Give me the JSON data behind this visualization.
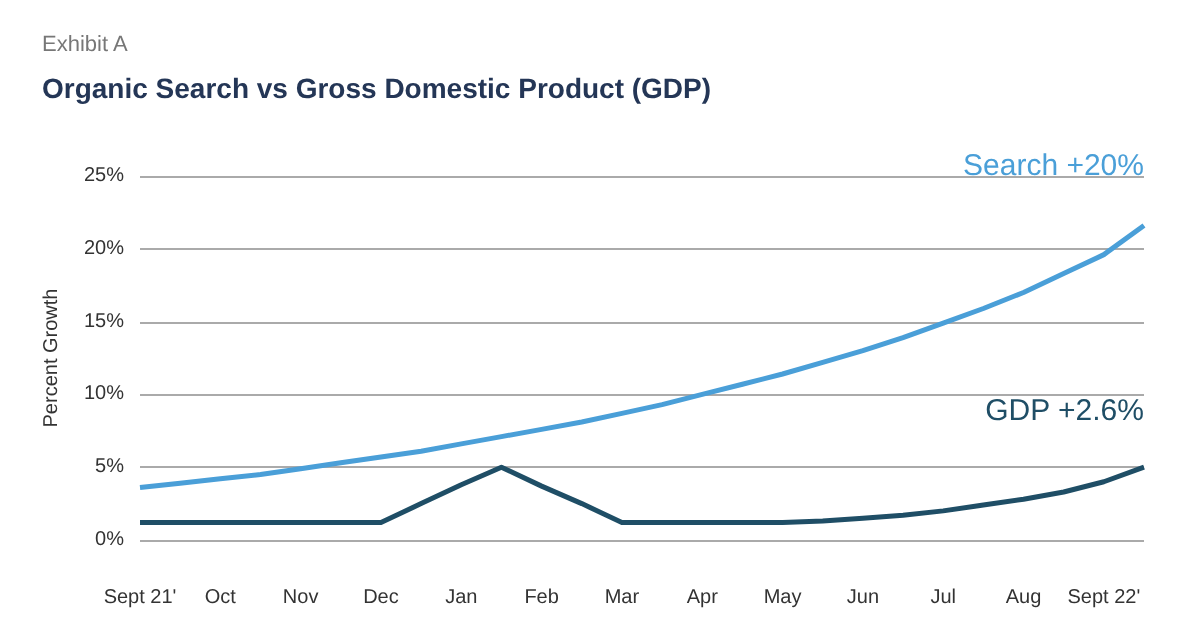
{
  "chart_data": {
    "type": "line",
    "subtitle": "Exhibit A",
    "title": "Organic Search vs Gross Domestic Product (GDP)",
    "ylabel": "Percent Growth",
    "categories": [
      "Sept 21'",
      null,
      "Oct",
      null,
      "Nov",
      null,
      "Dec",
      null,
      "Jan",
      null,
      "Feb",
      null,
      "Mar",
      null,
      "Apr",
      null,
      "May",
      null,
      "Jun",
      null,
      "Jul",
      null,
      "Aug",
      null,
      "Sept 22'",
      null
    ],
    "ylim": [
      0,
      25
    ],
    "yticks": [
      {
        "value": 0,
        "label": "0%"
      },
      {
        "value": 5,
        "label": "5%"
      },
      {
        "value": 10,
        "label": "10%"
      },
      {
        "value": 15,
        "label": "15%"
      },
      {
        "value": 20,
        "label": "20%"
      },
      {
        "value": 25,
        "label": "25%"
      }
    ],
    "series": [
      {
        "name": "Search +20%",
        "color": "#4a9fd8",
        "values": [
          3.6,
          3.9,
          4.2,
          4.5,
          4.9,
          5.3,
          5.7,
          6.1,
          6.6,
          7.1,
          7.6,
          8.1,
          8.7,
          9.3,
          10.0,
          10.7,
          11.4,
          12.2,
          13.0,
          13.9,
          14.9,
          15.9,
          17.0,
          18.3,
          19.6,
          21.6
        ]
      },
      {
        "name": "GDP +2.6%",
        "color": "#1f4e66",
        "values": [
          1.2,
          1.2,
          1.2,
          1.2,
          1.2,
          1.2,
          1.2,
          2.5,
          3.8,
          5.0,
          3.7,
          2.5,
          1.2,
          1.2,
          1.2,
          1.2,
          1.2,
          1.3,
          1.5,
          1.7,
          2.0,
          2.4,
          2.8,
          3.3,
          4.0,
          5.0
        ]
      }
    ],
    "grid": "y",
    "legend": false,
    "marker": "none",
    "line_style": "solid"
  }
}
